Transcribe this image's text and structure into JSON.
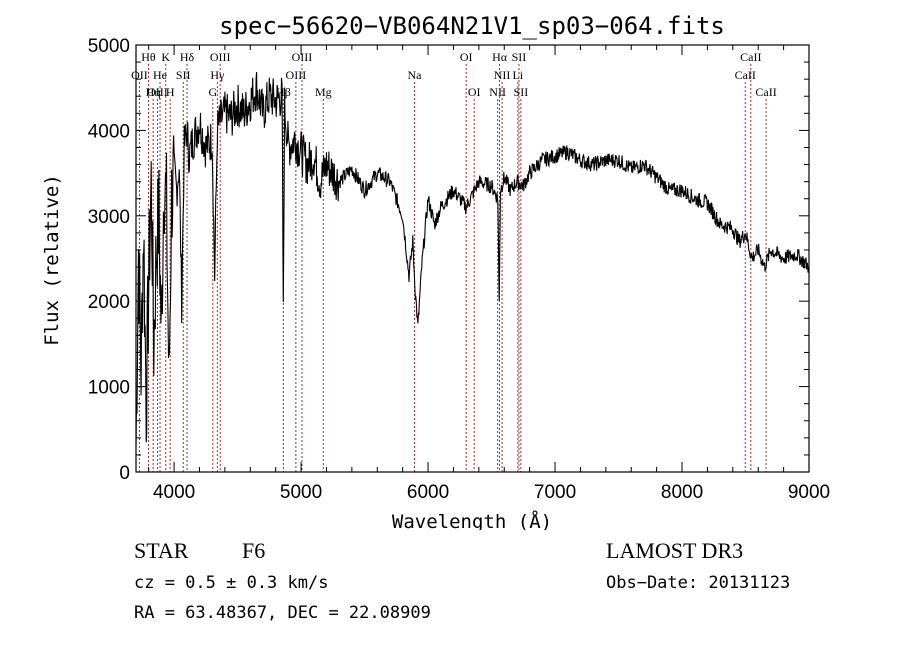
{
  "chart_data": {
    "type": "line",
    "title": "spec−56620−VB064N21V1_sp03−064.fits",
    "xlabel": "Wavelength (Å)",
    "ylabel": "Flux (relative)",
    "xlim": [
      3700,
      9000
    ],
    "ylim": [
      0,
      5000
    ],
    "xticks": [
      4000,
      5000,
      6000,
      7000,
      8000,
      9000
    ],
    "yticks": [
      0,
      1000,
      2000,
      3000,
      4000,
      5000
    ],
    "grid": false,
    "series": [
      {
        "name": "Flux",
        "x": [
          3700,
          3720,
          3740,
          3760,
          3780,
          3800,
          3820,
          3840,
          3860,
          3880,
          3900,
          3920,
          3940,
          3960,
          3980,
          4000,
          4020,
          4040,
          4060,
          4080,
          4100,
          4120,
          4150,
          4200,
          4250,
          4300,
          4320,
          4340,
          4360,
          4400,
          4450,
          4500,
          4550,
          4600,
          4650,
          4700,
          4750,
          4800,
          4850,
          4860,
          4870,
          4900,
          4950,
          5000,
          5050,
          5100,
          5150,
          5200,
          5250,
          5300,
          5400,
          5500,
          5600,
          5700,
          5800,
          5850,
          5880,
          5900,
          5920,
          5950,
          6000,
          6050,
          6100,
          6200,
          6300,
          6400,
          6500,
          6550,
          6560,
          6570,
          6600,
          6650,
          6700,
          6750,
          6800,
          6900,
          7000,
          7100,
          7200,
          7300,
          7400,
          7500,
          7600,
          7700,
          7800,
          7900,
          8000,
          8100,
          8200,
          8300,
          8400,
          8450,
          8500,
          8550,
          8600,
          8650,
          8700,
          8800,
          8900,
          9000
        ],
        "y": [
          300,
          2600,
          1200,
          2900,
          800,
          2200,
          3400,
          1500,
          2600,
          3000,
          1600,
          3500,
          3100,
          1000,
          3200,
          3500,
          3300,
          3600,
          2000,
          3800,
          4000,
          3700,
          3900,
          4100,
          3800,
          3900,
          2300,
          4000,
          4100,
          4200,
          4150,
          4300,
          4200,
          4350,
          4500,
          4200,
          4400,
          4350,
          4400,
          1800,
          4300,
          3800,
          3900,
          3750,
          3600,
          3700,
          3400,
          3600,
          3500,
          3400,
          3550,
          3300,
          3500,
          3400,
          3000,
          2300,
          2700,
          2100,
          1700,
          2400,
          3200,
          2900,
          3100,
          3300,
          3100,
          3400,
          3350,
          3200,
          2000,
          3300,
          3450,
          3300,
          3400,
          3350,
          3500,
          3650,
          3700,
          3750,
          3650,
          3600,
          3650,
          3650,
          3550,
          3600,
          3450,
          3300,
          3300,
          3200,
          3150,
          2900,
          2850,
          2700,
          2800,
          2500,
          2600,
          2400,
          2600,
          2500,
          2550,
          2400
        ]
      }
    ],
    "lines": [
      {
        "name": "OII",
        "wave": 3727,
        "row": 2
      },
      {
        "name": "Hθ",
        "wave": 3798,
        "row": 1
      },
      {
        "name": "OIII",
        "wave": 3869,
        "row": 3
      },
      {
        "name": "He",
        "wave": 3889,
        "row": 2
      },
      {
        "name": "Hη",
        "wave": 3835,
        "row": 3
      },
      {
        "name": "K",
        "wave": 3934,
        "row": 1
      },
      {
        "name": "SII",
        "wave": 4072,
        "row": 2
      },
      {
        "name": "H",
        "wave": 3969,
        "row": 3
      },
      {
        "name": "Hδ",
        "wave": 4102,
        "row": 1
      },
      {
        "name": "G",
        "wave": 4305,
        "row": 3
      },
      {
        "name": "Hγ",
        "wave": 4341,
        "row": 2
      },
      {
        "name": "OIII",
        "wave": 4363,
        "row": 1
      },
      {
        "name": "Hβ",
        "wave": 4861,
        "row": 3
      },
      {
        "name": "OIII",
        "wave": 4959,
        "row": 2
      },
      {
        "name": "OIII",
        "wave": 5007,
        "row": 1
      },
      {
        "name": "Mg",
        "wave": 5175,
        "row": 3
      },
      {
        "name": "Na",
        "wave": 5893,
        "row": 2
      },
      {
        "name": "OI",
        "wave": 6300,
        "row": 1
      },
      {
        "name": "OI",
        "wave": 6363,
        "row": 3
      },
      {
        "name": "NII",
        "wave": 6548,
        "row": 3
      },
      {
        "name": "Hα",
        "wave": 6563,
        "row": 1
      },
      {
        "name": "NII",
        "wave": 6583,
        "row": 2
      },
      {
        "name": "Li",
        "wave": 6707,
        "row": 2
      },
      {
        "name": "SII",
        "wave": 6716,
        "row": 1
      },
      {
        "name": "SII",
        "wave": 6731,
        "row": 3
      },
      {
        "name": "CaII",
        "wave": 8498,
        "row": 2
      },
      {
        "name": "CaII",
        "wave": 8542,
        "row": 1
      },
      {
        "name": "CaII",
        "wave": 8662,
        "row": 3
      }
    ]
  },
  "info": {
    "class": "STAR",
    "subclass": "F6",
    "survey": "LAMOST DR3",
    "cz": "cz = 0.5 ± 0.3 km/s",
    "obs_date": "Obs−Date: 20131123",
    "coords": "RA =  63.48367, DEC =  22.08909"
  },
  "colors": {
    "axis": "#000000",
    "spectrum": "#000000",
    "line_marker": "#a52a2a"
  }
}
